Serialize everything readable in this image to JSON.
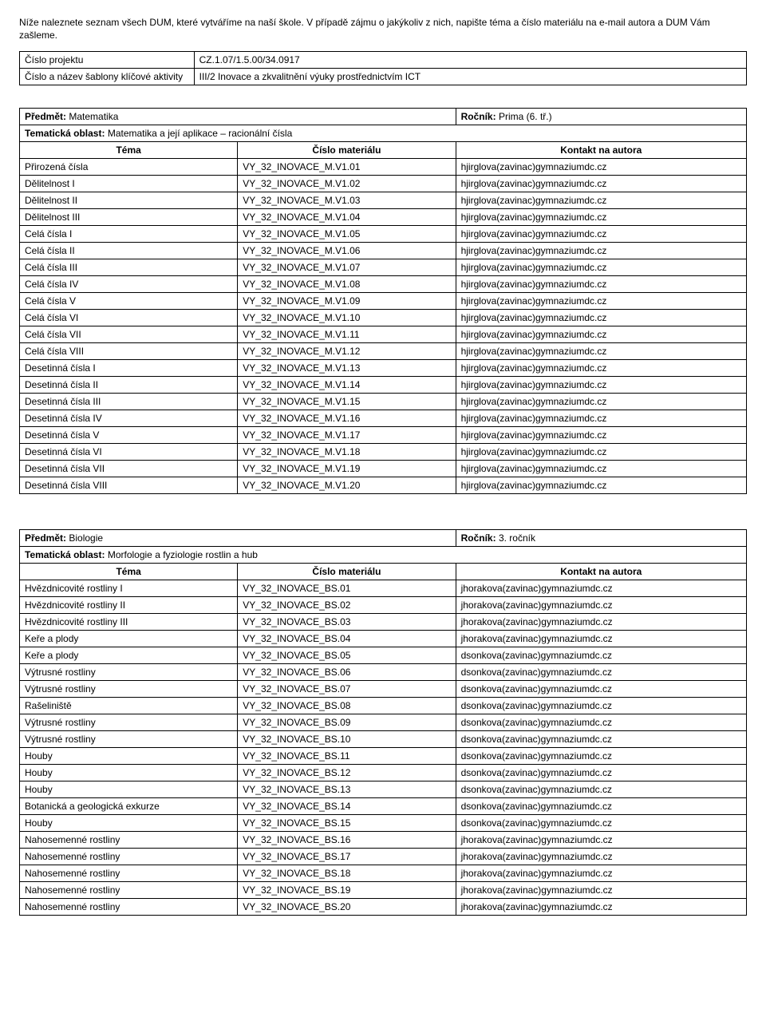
{
  "intro": "Níže naleznete seznam všech DUM, které vytváříme na naší škole. V případě zájmu o jakýkoliv z nich, napište téma a číslo materiálu na e-mail autora a DUM Vám zašleme.",
  "project": {
    "row1": {
      "label": "Číslo projektu",
      "value": "CZ.1.07/1.5.00/34.0917"
    },
    "row2": {
      "label": "Číslo a název šablony klíčové aktivity",
      "value": "III/2 Inovace a zkvalitnění výuky prostřednictvím ICT"
    }
  },
  "headers": {
    "tema": "Téma",
    "cislo": "Číslo materiálu",
    "kontakt": "Kontakt na autora"
  },
  "subject1": {
    "predmet_label": "Předmět:",
    "predmet_value": "Matematika",
    "rocnik_label": "Ročník:",
    "rocnik_value": "Prima (6. tř.)",
    "oblast_label": "Tematická oblast:",
    "oblast_value": "Matematika a její aplikace – racionální čísla",
    "rows": [
      {
        "t": "Přirozená čísla",
        "c": "VY_32_INOVACE_M.V1.01",
        "k": "hjirglova(zavinac)gymnaziumdc.cz"
      },
      {
        "t": "Dělitelnost I",
        "c": "VY_32_INOVACE_M.V1.02",
        "k": "hjirglova(zavinac)gymnaziumdc.cz"
      },
      {
        "t": "Dělitelnost II",
        "c": "VY_32_INOVACE_M.V1.03",
        "k": "hjirglova(zavinac)gymnaziumdc.cz"
      },
      {
        "t": "Dělitelnost III",
        "c": "VY_32_INOVACE_M.V1.04",
        "k": "hjirglova(zavinac)gymnaziumdc.cz"
      },
      {
        "t": "Celá čísla I",
        "c": "VY_32_INOVACE_M.V1.05",
        "k": "hjirglova(zavinac)gymnaziumdc.cz"
      },
      {
        "t": "Celá čísla II",
        "c": "VY_32_INOVACE_M.V1.06",
        "k": "hjirglova(zavinac)gymnaziumdc.cz"
      },
      {
        "t": "Celá čísla III",
        "c": "VY_32_INOVACE_M.V1.07",
        "k": "hjirglova(zavinac)gymnaziumdc.cz"
      },
      {
        "t": "Celá čísla IV",
        "c": "VY_32_INOVACE_M.V1.08",
        "k": "hjirglova(zavinac)gymnaziumdc.cz"
      },
      {
        "t": "Celá čísla V",
        "c": "VY_32_INOVACE_M.V1.09",
        "k": "hjirglova(zavinac)gymnaziumdc.cz"
      },
      {
        "t": "Celá čísla VI",
        "c": "VY_32_INOVACE_M.V1.10",
        "k": "hjirglova(zavinac)gymnaziumdc.cz"
      },
      {
        "t": "Celá čísla VII",
        "c": "VY_32_INOVACE_M.V1.11",
        "k": "hjirglova(zavinac)gymnaziumdc.cz"
      },
      {
        "t": "Celá čísla VIII",
        "c": "VY_32_INOVACE_M.V1.12",
        "k": "hjirglova(zavinac)gymnaziumdc.cz"
      },
      {
        "t": "Desetinná čísla I",
        "c": "VY_32_INOVACE_M.V1.13",
        "k": "hjirglova(zavinac)gymnaziumdc.cz"
      },
      {
        "t": "Desetinná čísla II",
        "c": "VY_32_INOVACE_M.V1.14",
        "k": "hjirglova(zavinac)gymnaziumdc.cz"
      },
      {
        "t": "Desetinná čísla III",
        "c": "VY_32_INOVACE_M.V1.15",
        "k": "hjirglova(zavinac)gymnaziumdc.cz"
      },
      {
        "t": "Desetinná čísla IV",
        "c": "VY_32_INOVACE_M.V1.16",
        "k": "hjirglova(zavinac)gymnaziumdc.cz"
      },
      {
        "t": "Desetinná čísla V",
        "c": "VY_32_INOVACE_M.V1.17",
        "k": "hjirglova(zavinac)gymnaziumdc.cz"
      },
      {
        "t": "Desetinná čísla VI",
        "c": "VY_32_INOVACE_M.V1.18",
        "k": "hjirglova(zavinac)gymnaziumdc.cz"
      },
      {
        "t": "Desetinná čísla VII",
        "c": "VY_32_INOVACE_M.V1.19",
        "k": "hjirglova(zavinac)gymnaziumdc.cz"
      },
      {
        "t": "Desetinná čísla VIII",
        "c": "VY_32_INOVACE_M.V1.20",
        "k": "hjirglova(zavinac)gymnaziumdc.cz"
      }
    ]
  },
  "subject2": {
    "predmet_label": "Předmět:",
    "predmet_value": "Biologie",
    "rocnik_label": "Ročník:",
    "rocnik_value": "3. ročník",
    "oblast_label": "Tematická oblast:",
    "oblast_value": "Morfologie a fyziologie rostlin a hub",
    "rows": [
      {
        "t": "Hvězdnicovité rostliny I",
        "c": "VY_32_INOVACE_BS.01",
        "k": "jhorakova(zavinac)gymnaziumdc.cz"
      },
      {
        "t": "Hvězdnicovité rostliny II",
        "c": "VY_32_INOVACE_BS.02",
        "k": "jhorakova(zavinac)gymnaziumdc.cz"
      },
      {
        "t": "Hvězdnicovité rostliny III",
        "c": "VY_32_INOVACE_BS.03",
        "k": "jhorakova(zavinac)gymnaziumdc.cz"
      },
      {
        "t": "Keře a plody",
        "c": "VY_32_INOVACE_BS.04",
        "k": "jhorakova(zavinac)gymnaziumdc.cz"
      },
      {
        "t": "Keře a plody",
        "c": "VY_32_INOVACE_BS.05",
        "k": "dsonkova(zavinac)gymnaziumdc.cz"
      },
      {
        "t": "Výtrusné rostliny",
        "c": "VY_32_INOVACE_BS.06",
        "k": "dsonkova(zavinac)gymnaziumdc.cz"
      },
      {
        "t": "Výtrusné rostliny",
        "c": "VY_32_INOVACE_BS.07",
        "k": "dsonkova(zavinac)gymnaziumdc.cz"
      },
      {
        "t": "Rašeliniště",
        "c": "VY_32_INOVACE_BS.08",
        "k": "dsonkova(zavinac)gymnaziumdc.cz"
      },
      {
        "t": "Výtrusné rostliny",
        "c": "VY_32_INOVACE_BS.09",
        "k": "dsonkova(zavinac)gymnaziumdc.cz"
      },
      {
        "t": "Výtrusné rostliny",
        "c": "VY_32_INOVACE_BS.10",
        "k": "dsonkova(zavinac)gymnaziumdc.cz"
      },
      {
        "t": "Houby",
        "c": "VY_32_INOVACE_BS.11",
        "k": "dsonkova(zavinac)gymnaziumdc.cz"
      },
      {
        "t": "Houby",
        "c": "VY_32_INOVACE_BS.12",
        "k": "dsonkova(zavinac)gymnaziumdc.cz"
      },
      {
        "t": "Houby",
        "c": "VY_32_INOVACE_BS.13",
        "k": "dsonkova(zavinac)gymnaziumdc.cz"
      },
      {
        "t": "Botanická a geologická exkurze",
        "c": "VY_32_INOVACE_BS.14",
        "k": "dsonkova(zavinac)gymnaziumdc.cz"
      },
      {
        "t": "Houby",
        "c": "VY_32_INOVACE_BS.15",
        "k": "dsonkova(zavinac)gymnaziumdc.cz"
      },
      {
        "t": "Nahosemenné rostliny",
        "c": "VY_32_INOVACE_BS.16",
        "k": "jhorakova(zavinac)gymnaziumdc.cz"
      },
      {
        "t": "Nahosemenné rostliny",
        "c": "VY_32_INOVACE_BS.17",
        "k": "jhorakova(zavinac)gymnaziumdc.cz"
      },
      {
        "t": "Nahosemenné rostliny",
        "c": "VY_32_INOVACE_BS.18",
        "k": "jhorakova(zavinac)gymnaziumdc.cz"
      },
      {
        "t": "Nahosemenné rostliny",
        "c": "VY_32_INOVACE_BS.19",
        "k": "jhorakova(zavinac)gymnaziumdc.cz"
      },
      {
        "t": "Nahosemenné rostliny",
        "c": "VY_32_INOVACE_BS.20",
        "k": "jhorakova(zavinac)gymnaziumdc.cz"
      }
    ]
  }
}
